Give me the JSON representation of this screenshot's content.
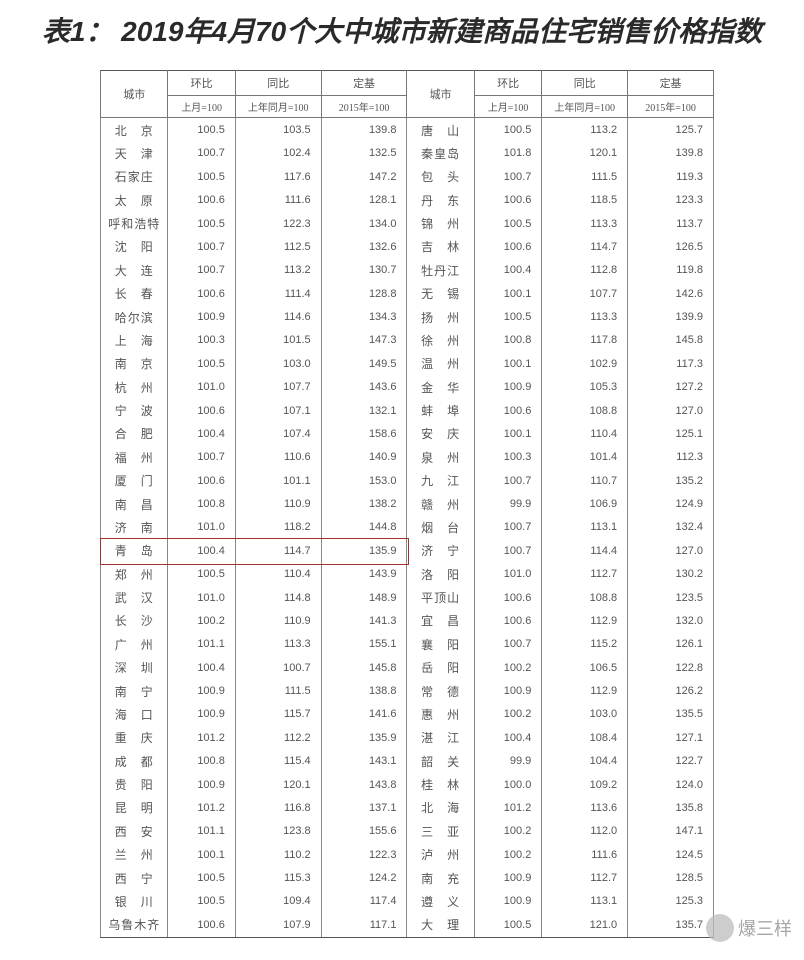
{
  "title": "表1： 2019年4月70个大中城市新建商品住宅销售价格指数",
  "headers": {
    "city": "城市",
    "mom": "环比",
    "yoy": "同比",
    "base": "定基",
    "mom_sub": "上月=100",
    "yoy_sub": "上年同月=100",
    "base_sub": "2015年=100"
  },
  "highlight_row_index": 17,
  "rows": [
    {
      "c1": "北　京",
      "v1": "100.5",
      "v2": "103.5",
      "v3": "139.8",
      "c2": "唐　山",
      "v4": "100.5",
      "v5": "113.2",
      "v6": "125.7"
    },
    {
      "c1": "天　津",
      "v1": "100.7",
      "v2": "102.4",
      "v3": "132.5",
      "c2": "秦皇岛",
      "v4": "101.8",
      "v5": "120.1",
      "v6": "139.8"
    },
    {
      "c1": "石家庄",
      "v1": "100.5",
      "v2": "117.6",
      "v3": "147.2",
      "c2": "包　头",
      "v4": "100.7",
      "v5": "111.5",
      "v6": "119.3"
    },
    {
      "c1": "太　原",
      "v1": "100.6",
      "v2": "111.6",
      "v3": "128.1",
      "c2": "丹　东",
      "v4": "100.6",
      "v5": "118.5",
      "v6": "123.3"
    },
    {
      "c1": "呼和浩特",
      "v1": "100.5",
      "v2": "122.3",
      "v3": "134.0",
      "c2": "锦　州",
      "v4": "100.5",
      "v5": "113.3",
      "v6": "113.7"
    },
    {
      "c1": "沈　阳",
      "v1": "100.7",
      "v2": "112.5",
      "v3": "132.6",
      "c2": "吉　林",
      "v4": "100.6",
      "v5": "114.7",
      "v6": "126.5"
    },
    {
      "c1": "大　连",
      "v1": "100.7",
      "v2": "113.2",
      "v3": "130.7",
      "c2": "牡丹江",
      "v4": "100.4",
      "v5": "112.8",
      "v6": "119.8"
    },
    {
      "c1": "长　春",
      "v1": "100.6",
      "v2": "111.4",
      "v3": "128.8",
      "c2": "无　锡",
      "v4": "100.1",
      "v5": "107.7",
      "v6": "142.6"
    },
    {
      "c1": "哈尔滨",
      "v1": "100.9",
      "v2": "114.6",
      "v3": "134.3",
      "c2": "扬　州",
      "v4": "100.5",
      "v5": "113.3",
      "v6": "139.9"
    },
    {
      "c1": "上　海",
      "v1": "100.3",
      "v2": "101.5",
      "v3": "147.3",
      "c2": "徐　州",
      "v4": "100.8",
      "v5": "117.8",
      "v6": "145.8"
    },
    {
      "c1": "南　京",
      "v1": "100.5",
      "v2": "103.0",
      "v3": "149.5",
      "c2": "温　州",
      "v4": "100.1",
      "v5": "102.9",
      "v6": "117.3"
    },
    {
      "c1": "杭　州",
      "v1": "101.0",
      "v2": "107.7",
      "v3": "143.6",
      "c2": "金　华",
      "v4": "100.9",
      "v5": "105.3",
      "v6": "127.2"
    },
    {
      "c1": "宁　波",
      "v1": "100.6",
      "v2": "107.1",
      "v3": "132.1",
      "c2": "蚌　埠",
      "v4": "100.6",
      "v5": "108.8",
      "v6": "127.0"
    },
    {
      "c1": "合　肥",
      "v1": "100.4",
      "v2": "107.4",
      "v3": "158.6",
      "c2": "安　庆",
      "v4": "100.1",
      "v5": "110.4",
      "v6": "125.1"
    },
    {
      "c1": "福　州",
      "v1": "100.7",
      "v2": "110.6",
      "v3": "140.9",
      "c2": "泉　州",
      "v4": "100.3",
      "v5": "101.4",
      "v6": "112.3"
    },
    {
      "c1": "厦　门",
      "v1": "100.6",
      "v2": "101.1",
      "v3": "153.0",
      "c2": "九　江",
      "v4": "100.7",
      "v5": "110.7",
      "v6": "135.2"
    },
    {
      "c1": "南　昌",
      "v1": "100.8",
      "v2": "110.9",
      "v3": "138.2",
      "c2": "赣　州",
      "v4": "99.9",
      "v5": "106.9",
      "v6": "124.9"
    },
    {
      "c1": "济　南",
      "v1": "101.0",
      "v2": "118.2",
      "v3": "144.8",
      "c2": "烟　台",
      "v4": "100.7",
      "v5": "113.1",
      "v6": "132.4"
    },
    {
      "c1": "青　岛",
      "v1": "100.4",
      "v2": "114.7",
      "v3": "135.9",
      "c2": "济　宁",
      "v4": "100.7",
      "v5": "114.4",
      "v6": "127.0"
    },
    {
      "c1": "郑　州",
      "v1": "100.5",
      "v2": "110.4",
      "v3": "143.9",
      "c2": "洛　阳",
      "v4": "101.0",
      "v5": "112.7",
      "v6": "130.2"
    },
    {
      "c1": "武　汉",
      "v1": "101.0",
      "v2": "114.8",
      "v3": "148.9",
      "c2": "平顶山",
      "v4": "100.6",
      "v5": "108.8",
      "v6": "123.5"
    },
    {
      "c1": "长　沙",
      "v1": "100.2",
      "v2": "110.9",
      "v3": "141.3",
      "c2": "宜　昌",
      "v4": "100.6",
      "v5": "112.9",
      "v6": "132.0"
    },
    {
      "c1": "广　州",
      "v1": "101.1",
      "v2": "113.3",
      "v3": "155.1",
      "c2": "襄　阳",
      "v4": "100.7",
      "v5": "115.2",
      "v6": "126.1"
    },
    {
      "c1": "深　圳",
      "v1": "100.4",
      "v2": "100.7",
      "v3": "145.8",
      "c2": "岳　阳",
      "v4": "100.2",
      "v5": "106.5",
      "v6": "122.8"
    },
    {
      "c1": "南　宁",
      "v1": "100.9",
      "v2": "111.5",
      "v3": "138.8",
      "c2": "常　德",
      "v4": "100.9",
      "v5": "112.9",
      "v6": "126.2"
    },
    {
      "c1": "海　口",
      "v1": "100.9",
      "v2": "115.7",
      "v3": "141.6",
      "c2": "惠　州",
      "v4": "100.2",
      "v5": "103.0",
      "v6": "135.5"
    },
    {
      "c1": "重　庆",
      "v1": "101.2",
      "v2": "112.2",
      "v3": "135.9",
      "c2": "湛　江",
      "v4": "100.4",
      "v5": "108.4",
      "v6": "127.1"
    },
    {
      "c1": "成　都",
      "v1": "100.8",
      "v2": "115.4",
      "v3": "143.1",
      "c2": "韶　关",
      "v4": "99.9",
      "v5": "104.4",
      "v6": "122.7"
    },
    {
      "c1": "贵　阳",
      "v1": "100.9",
      "v2": "120.1",
      "v3": "143.8",
      "c2": "桂　林",
      "v4": "100.0",
      "v5": "109.2",
      "v6": "124.0"
    },
    {
      "c1": "昆　明",
      "v1": "101.2",
      "v2": "116.8",
      "v3": "137.1",
      "c2": "北　海",
      "v4": "101.2",
      "v5": "113.6",
      "v6": "135.8"
    },
    {
      "c1": "西　安",
      "v1": "101.1",
      "v2": "123.8",
      "v3": "155.6",
      "c2": "三　亚",
      "v4": "100.2",
      "v5": "112.0",
      "v6": "147.1"
    },
    {
      "c1": "兰　州",
      "v1": "100.1",
      "v2": "110.2",
      "v3": "122.3",
      "c2": "泸　州",
      "v4": "100.2",
      "v5": "111.6",
      "v6": "124.5"
    },
    {
      "c1": "西　宁",
      "v1": "100.5",
      "v2": "115.3",
      "v3": "124.2",
      "c2": "南　充",
      "v4": "100.9",
      "v5": "112.7",
      "v6": "128.5"
    },
    {
      "c1": "银　川",
      "v1": "100.5",
      "v2": "109.4",
      "v3": "117.4",
      "c2": "遵　义",
      "v4": "100.9",
      "v5": "113.1",
      "v6": "125.3"
    },
    {
      "c1": "乌鲁木齐",
      "v1": "100.6",
      "v2": "107.9",
      "v3": "117.1",
      "c2": "大　理",
      "v4": "100.5",
      "v5": "121.0",
      "v6": "135.7"
    }
  ],
  "watermark": "爆三样"
}
